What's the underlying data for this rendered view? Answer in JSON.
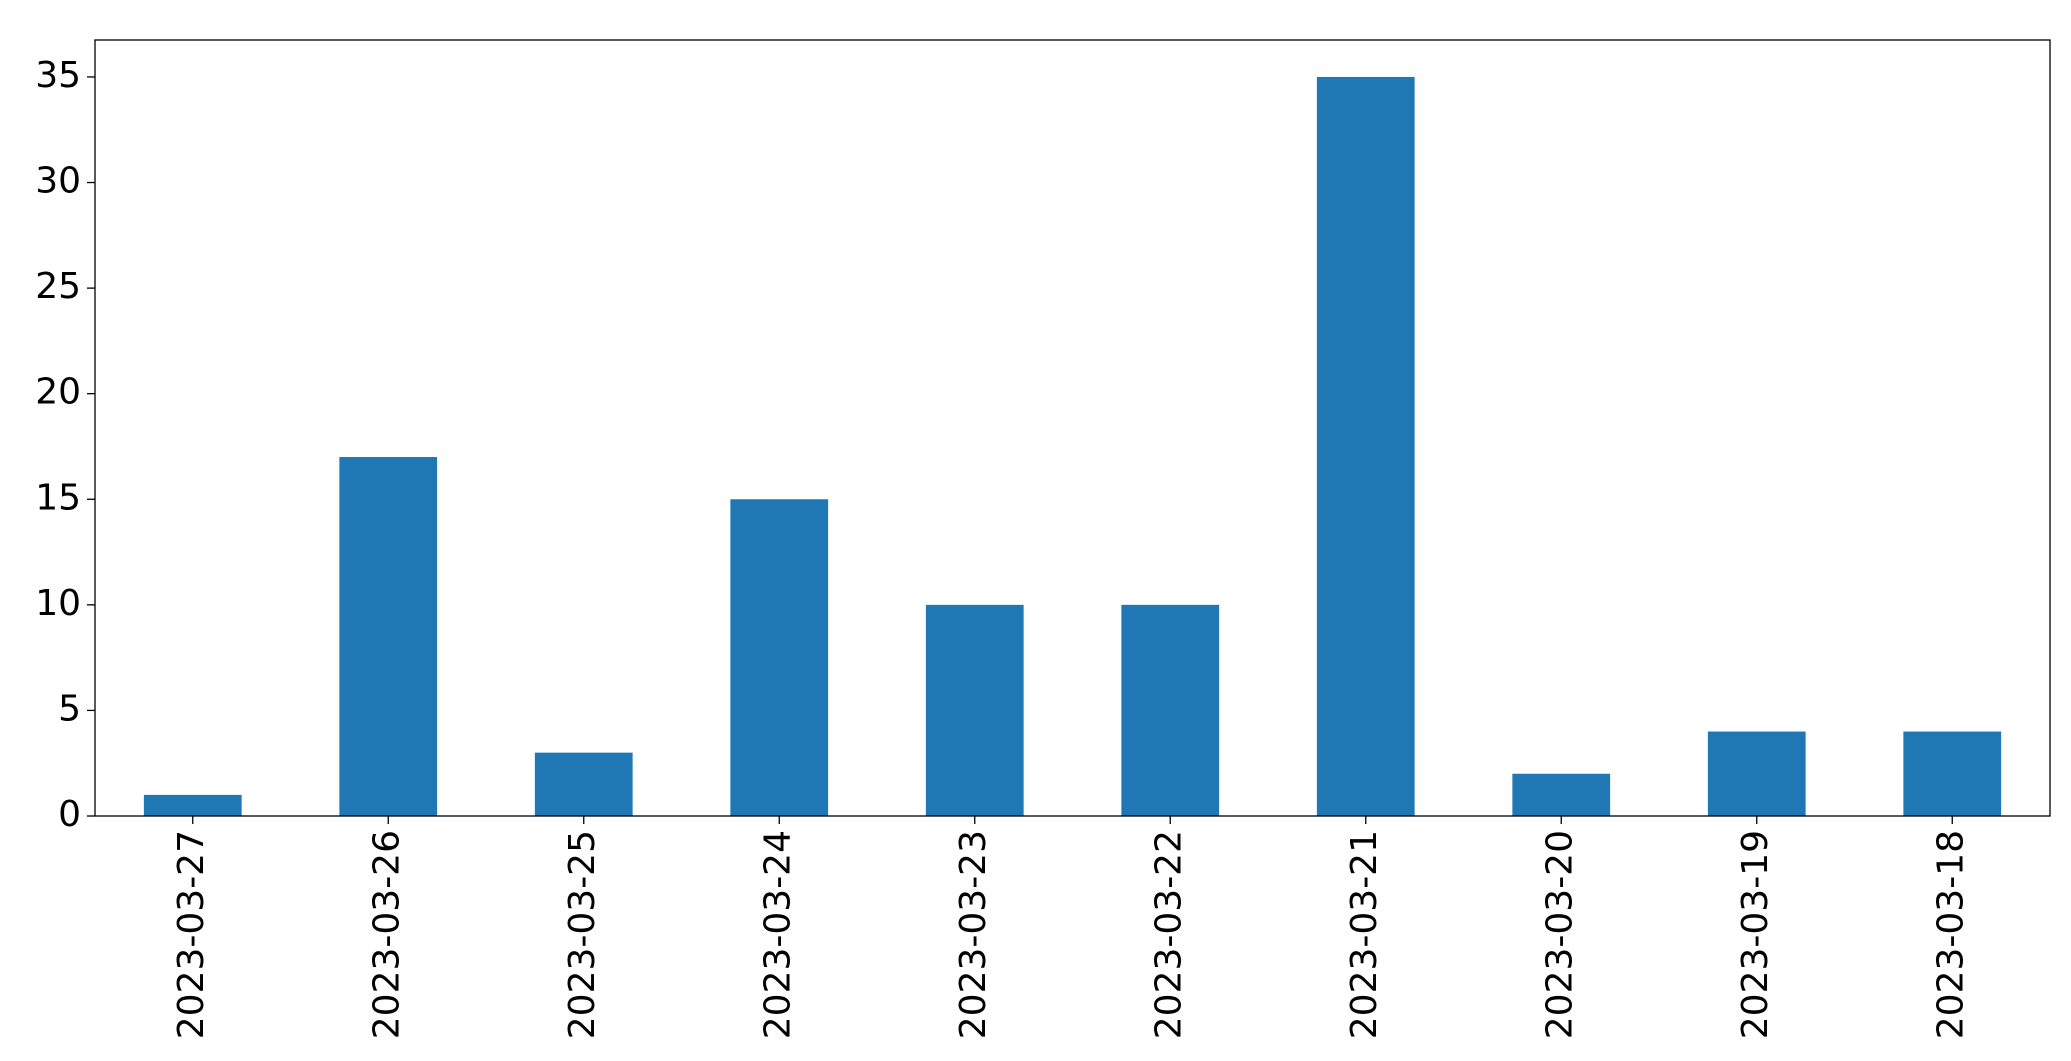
{
  "chart_data": {
    "type": "bar",
    "categories": [
      "2023-03-27",
      "2023-03-26",
      "2023-03-25",
      "2023-03-24",
      "2023-03-23",
      "2023-03-22",
      "2023-03-21",
      "2023-03-20",
      "2023-03-19",
      "2023-03-18"
    ],
    "values": [
      1,
      17,
      3,
      15,
      10,
      10,
      35,
      2,
      4,
      4
    ],
    "color": "#1f77b4",
    "ylim": [
      0,
      36.75
    ],
    "yticks": [
      0,
      5,
      10,
      15,
      20,
      25,
      30,
      35
    ],
    "grid": false
  }
}
